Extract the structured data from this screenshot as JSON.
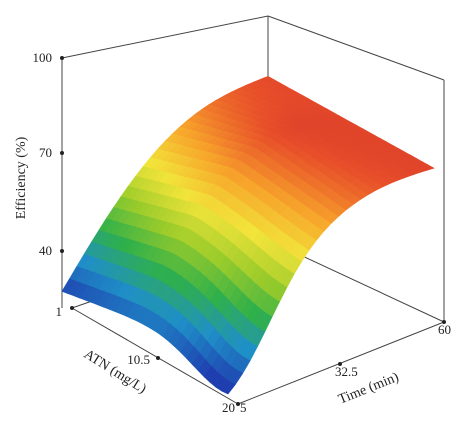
{
  "chart_data": {
    "type": "surface3d",
    "zlabel": "Efficiency (%)",
    "xlabel": "Time (min)",
    "ylabel": "ATN (mg/L)",
    "z_ticks": [
      "100",
      "70",
      "40"
    ],
    "x_ticks": [
      "5",
      "32.5",
      "60"
    ],
    "y_ticks": [
      "1",
      "10.5",
      "20"
    ],
    "zlim": [
      40,
      100
    ],
    "xlim": [
      5,
      60
    ],
    "ylim": [
      1,
      20
    ],
    "colormap": [
      "#1f3fb0",
      "#1f8fc8",
      "#2fb04a",
      "#9ccc2a",
      "#f2e43a",
      "#f7a52b",
      "#e8502a",
      "#c8202a"
    ],
    "surface_corners": [
      {
        "time": 5,
        "atn": 1,
        "efficiency": 44
      },
      {
        "time": 5,
        "atn": 20,
        "efficiency": 52
      },
      {
        "time": 60,
        "atn": 1,
        "efficiency": 86
      },
      {
        "time": 60,
        "atn": 20,
        "efficiency": 87
      }
    ],
    "grid": false
  }
}
